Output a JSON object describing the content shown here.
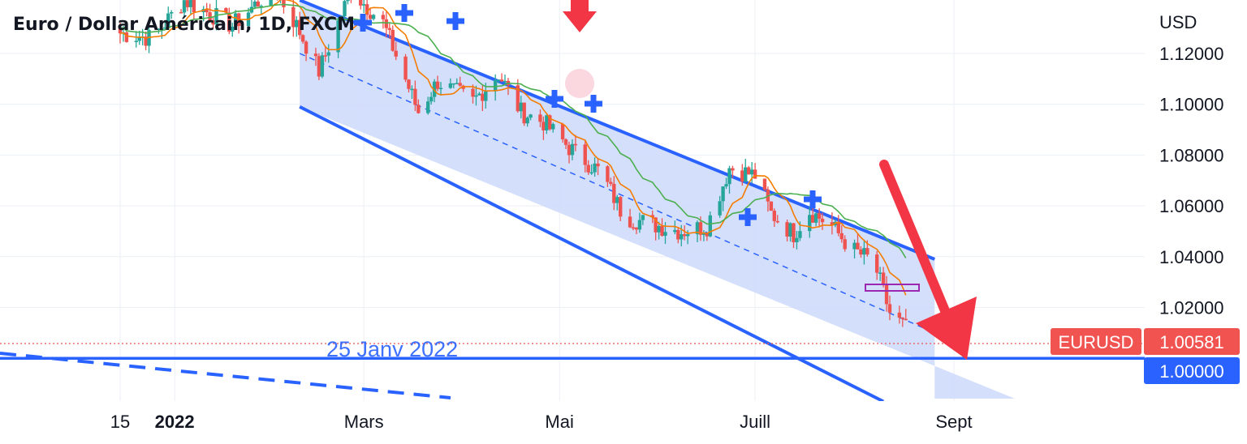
{
  "chart_data": {
    "type": "candlestick",
    "title": "Euro / Dollar Américain, 1D, FXCM",
    "currency": "USD",
    "y_ticks": [
      "1.12000",
      "1.10000",
      "1.08000",
      "1.06000",
      "1.04000",
      "1.02000"
    ],
    "x_ticks": [
      "15",
      "2022",
      "Mars",
      "Mai",
      "Juill",
      "Sept"
    ],
    "ylim": [
      0.983,
      1.141
    ],
    "grid": true,
    "annotation_text": "25 Janv 2022",
    "symbol_tag": "EURUSD",
    "last_price": "1.00581",
    "level_price": "1.00000",
    "channel_upper": [
      {
        "date": "2022-02-09",
        "y": 1.141
      },
      {
        "date": "2022-08-26",
        "y": 1.039
      }
    ],
    "channel_lower": [
      {
        "date": "2022-02-09",
        "y": 1.099
      },
      {
        "date": "2022-08-10",
        "y": 0.983
      }
    ],
    "channel_mid": [
      {
        "date": "2022-02-09",
        "y": 1.12
      },
      {
        "date": "2022-08-26",
        "y": 1.01
      }
    ],
    "support_level": 1.0,
    "colors": {
      "up": "#26a69a",
      "down": "#ef5350",
      "channel": "#2962ff",
      "fill": "#cdd9fb",
      "ma_fast": "#f57c00",
      "ma_slow": "#4caf50",
      "arrow": "#f23645",
      "last_tag": "#f05350",
      "level_tag": "#2962ff"
    }
  },
  "icons": {
    "arrow_down_top": "arrow-down-icon",
    "arrow_forecast": "arrow-down-right-icon",
    "crosses": "cross-marker-icon"
  }
}
